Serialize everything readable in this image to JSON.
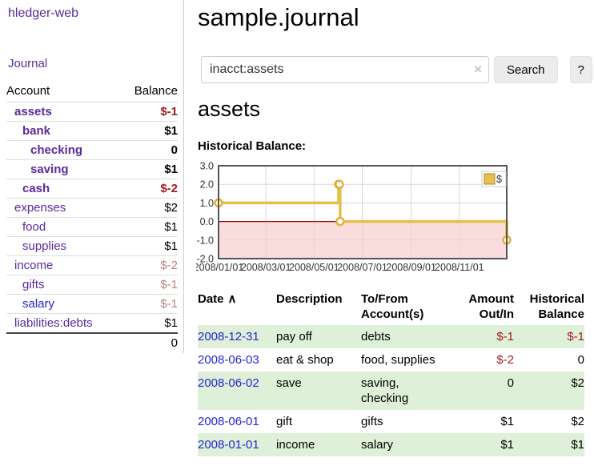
{
  "app": {
    "title": "hledger-web",
    "journal_link": "Journal"
  },
  "sidebar": {
    "headers": {
      "account": "Account",
      "balance": "Balance"
    },
    "accounts": [
      {
        "name": "assets",
        "depth": 1,
        "bold": true,
        "link_color": "purple",
        "balance": "$-1",
        "balance_style": "negative",
        "balance_bold": true
      },
      {
        "name": "bank",
        "depth": 2,
        "bold": true,
        "link_color": "purple",
        "balance": "$1",
        "balance_style": "normal",
        "balance_bold": true
      },
      {
        "name": "checking",
        "depth": 3,
        "bold": true,
        "link_color": "purple",
        "balance": "0",
        "balance_style": "normal",
        "balance_bold": true
      },
      {
        "name": "saving",
        "depth": 3,
        "bold": true,
        "link_color": "purple",
        "balance": "$1",
        "balance_style": "normal",
        "balance_bold": true
      },
      {
        "name": "cash",
        "depth": 2,
        "bold": true,
        "link_color": "purple",
        "balance": "$-2",
        "balance_style": "negative",
        "balance_bold": true
      },
      {
        "name": "expenses",
        "depth": 1,
        "bold": false,
        "link_color": "purple",
        "balance": "$2",
        "balance_style": "normal",
        "balance_bold": false
      },
      {
        "name": "food",
        "depth": 2,
        "bold": false,
        "link_color": "purple",
        "balance": "$1",
        "balance_style": "normal",
        "balance_bold": false
      },
      {
        "name": "supplies",
        "depth": 2,
        "bold": false,
        "link_color": "purple",
        "balance": "$1",
        "balance_style": "normal",
        "balance_bold": false
      },
      {
        "name": "income",
        "depth": 1,
        "bold": false,
        "link_color": "purple",
        "balance": "$-2",
        "balance_style": "faded",
        "balance_bold": false
      },
      {
        "name": "gifts",
        "depth": 2,
        "bold": false,
        "link_color": "purple",
        "balance": "$-1",
        "balance_style": "faded",
        "balance_bold": false
      },
      {
        "name": "salary",
        "depth": 2,
        "bold": false,
        "link_color": "blue",
        "balance": "$-1",
        "balance_style": "faded",
        "balance_bold": false
      },
      {
        "name": "liabilities:debts",
        "depth": 1,
        "bold": false,
        "link_color": "purple",
        "balance": "$1",
        "balance_style": "normal",
        "balance_bold": false
      }
    ],
    "total": "0"
  },
  "main": {
    "title": "sample.journal",
    "search": {
      "value": "inacct:assets",
      "clear_icon": "×",
      "search_button": "Search",
      "help_button": "?"
    },
    "account_heading": "assets",
    "chart_label": "Historical Balance:"
  },
  "chart_data": {
    "type": "line",
    "step": true,
    "series": [
      {
        "name": "$",
        "points": [
          {
            "date": "2008-01-01",
            "value": 1
          },
          {
            "date": "2008-06-01",
            "value": 2
          },
          {
            "date": "2008-06-02",
            "value": 2
          },
          {
            "date": "2008-06-03",
            "value": 0
          },
          {
            "date": "2008-12-31",
            "value": -1
          }
        ]
      }
    ],
    "x_range": [
      "2008-01-01",
      "2008-12-31"
    ],
    "ylim": [
      -2,
      3
    ],
    "yticks": [
      "3.0",
      "2.0",
      "1.0",
      "0.0",
      "-1.0",
      "-2.0"
    ],
    "xticks": [
      "2008/01/01",
      "2008/03/01",
      "2008/05/01",
      "2008/07/01",
      "2008/09/01",
      "2008/11/01"
    ],
    "legend": {
      "label": "$",
      "position": "top-right"
    },
    "grid": true,
    "negative_region_shaded": true
  },
  "register": {
    "headers": [
      {
        "label": "Date",
        "icon": "∧",
        "align": "left"
      },
      {
        "label": "Description",
        "align": "left"
      },
      {
        "label": "To/From Account(s)",
        "align": "left"
      },
      {
        "label": "Amount Out/In",
        "align": "right"
      },
      {
        "label": "Historical Balance",
        "align": "right"
      }
    ],
    "rows": [
      {
        "date": "2008-12-31",
        "description": "pay off",
        "accounts": "debts",
        "amount": "$-1",
        "amount_style": "negative",
        "balance": "$-1",
        "balance_style": "negative"
      },
      {
        "date": "2008-06-03",
        "description": "eat & shop",
        "accounts": "food, supplies",
        "amount": "$-2",
        "amount_style": "negative",
        "balance": "0",
        "balance_style": "normal"
      },
      {
        "date": "2008-06-02",
        "description": "save",
        "accounts": "saving, checking",
        "amount": "0",
        "amount_style": "normal",
        "balance": "$2",
        "balance_style": "normal"
      },
      {
        "date": "2008-06-01",
        "description": "gift",
        "accounts": "gifts",
        "amount": "$1",
        "amount_style": "normal",
        "balance": "$2",
        "balance_style": "normal"
      },
      {
        "date": "2008-01-01",
        "description": "income",
        "accounts": "salary",
        "amount": "$1",
        "amount_style": "normal",
        "balance": "$1",
        "balance_style": "normal"
      }
    ]
  },
  "colors": {
    "link_purple": "#5b2a9d",
    "link_blue": "#2424d6",
    "negative_red": "#9e1b1b",
    "faded_negative": "#bd8282",
    "row_green": "#dff0d8",
    "chart_line_gold": "#e7c04a",
    "chart_marker_stroke": "#dcb23c",
    "chart_negative_fill": "#fbdcdc",
    "chart_zero_line": "#990000",
    "chart_grid": "#d9d9d9",
    "chart_border": "#555555",
    "button_bg": "#ececec"
  }
}
